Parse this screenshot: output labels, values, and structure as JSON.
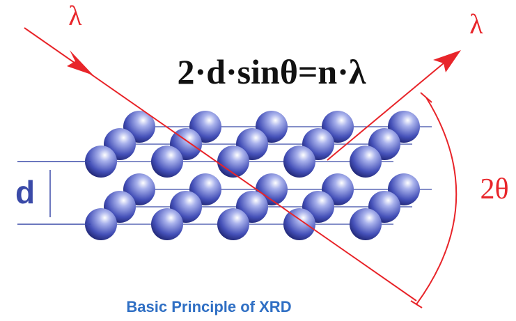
{
  "labels": {
    "incident_wavelength": "λ",
    "diffracted_wavelength": "λ",
    "equation": "2·d·sinθ=n·λ",
    "spacing": "d",
    "angle": "2θ",
    "caption": "Basic Principle of XRD"
  }
}
